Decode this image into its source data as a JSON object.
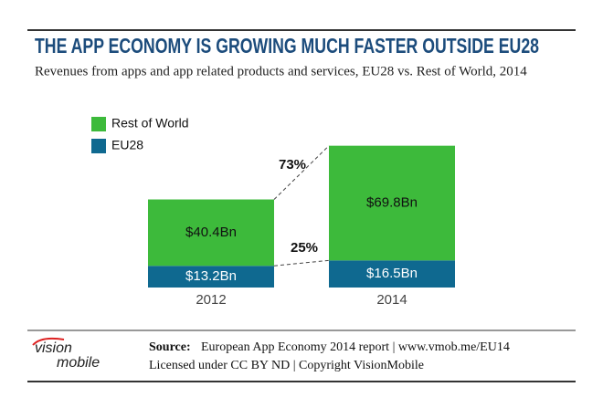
{
  "chart_data": {
    "type": "stacked_bar",
    "title": "THE APP ECONOMY IS GROWING MUCH FASTER OUTSIDE EU28",
    "subtitle": "Revenues from apps and app related products and services, EU28 vs. Rest of World, 2014",
    "categories": [
      "2012",
      "2014"
    ],
    "series": [
      {
        "name": "EU28",
        "color": "#0f6990",
        "values": [
          13.2,
          16.5
        ],
        "value_labels": [
          "$13.2Bn",
          "$16.5Bn"
        ]
      },
      {
        "name": "Rest of World",
        "color": "#3dba3b",
        "values": [
          40.4,
          69.8
        ],
        "value_labels": [
          "$40.4Bn",
          "$69.8Bn"
        ]
      }
    ],
    "annotations": [
      "73%",
      "25%"
    ],
    "source_label": "Source:",
    "source": "European App Economy 2014 report | www.vmob.me/EU14",
    "license": "Licensed under CC BY ND | Copyright VisionMobile",
    "logo": [
      "vision",
      "mobile"
    ]
  }
}
